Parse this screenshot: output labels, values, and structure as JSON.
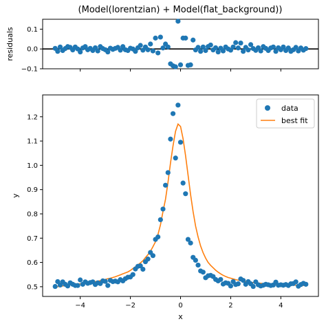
{
  "chart_data": [
    {
      "type": "scatter",
      "title": "(Model(lorentzian) + Model(flat_background))",
      "xlabel": "",
      "ylabel": "residuals",
      "xlim": [
        -5.5,
        5.5
      ],
      "ylim": [
        -0.1,
        0.15
      ],
      "xticks": [
        -4,
        -2,
        0,
        2,
        4
      ],
      "show_x_tick_labels": false,
      "yticks": [
        -0.1,
        0.0,
        0.1
      ],
      "ytick_labels": [
        "−0.1",
        "0.0",
        "0.1"
      ],
      "zero_line": true,
      "series": [
        {
          "color": "#1f77b4",
          "x": [
            -5.0,
            -4.9,
            -4.8,
            -4.7,
            -4.6,
            -4.5,
            -4.4,
            -4.3,
            -4.2,
            -4.1,
            -4.0,
            -3.9,
            -3.8,
            -3.7,
            -3.6,
            -3.5,
            -3.4,
            -3.3,
            -3.2,
            -3.1,
            -3.0,
            -2.9,
            -2.8,
            -2.7,
            -2.6,
            -2.5,
            -2.4,
            -2.3,
            -2.2,
            -2.1,
            -2.0,
            -1.9,
            -1.8,
            -1.7,
            -1.6,
            -1.5,
            -1.4,
            -1.3,
            -1.2,
            -1.1,
            -1.0,
            -0.9,
            -0.8,
            -0.7,
            -0.6,
            -0.5,
            -0.4,
            -0.3,
            -0.2,
            -0.1,
            0.0,
            0.1,
            0.2,
            0.3,
            0.4,
            0.5,
            0.6,
            0.7,
            0.8,
            0.9,
            1.0,
            1.1,
            1.2,
            1.3,
            1.4,
            1.5,
            1.6,
            1.7,
            1.8,
            1.9,
            2.0,
            2.1,
            2.2,
            2.3,
            2.4,
            2.5,
            2.6,
            2.7,
            2.8,
            2.9,
            3.0,
            3.1,
            3.2,
            3.3,
            3.4,
            3.5,
            3.6,
            3.7,
            3.8,
            3.9,
            4.0,
            4.1,
            4.2,
            4.3,
            4.4,
            4.5,
            4.6,
            4.7,
            4.8,
            4.9,
            5.0
          ],
          "y": [
            0.003,
            -0.012,
            0.01,
            -0.008,
            0.002,
            0.012,
            0.008,
            -0.005,
            0.01,
            0.0,
            -0.015,
            0.005,
            0.012,
            -0.004,
            0.003,
            -0.008,
            0.006,
            -0.01,
            0.012,
            0.002,
            -0.004,
            -0.015,
            0.004,
            -0.002,
            0.003,
            0.008,
            -0.006,
            0.012,
            -0.004,
            -0.008,
            0.004,
            0.0,
            -0.012,
            0.006,
            0.018,
            -0.006,
            0.01,
            -0.004,
            0.025,
            -0.01,
            0.055,
            -0.02,
            0.06,
            0.005,
            0.025,
            0.01,
            -0.075,
            -0.085,
            -0.09,
            0.14,
            -0.08,
            0.055,
            0.055,
            -0.083,
            -0.08,
            0.045,
            -0.005,
            0.008,
            -0.012,
            0.01,
            -0.008,
            0.012,
            0.02,
            -0.005,
            0.006,
            -0.015,
            0.004,
            -0.01,
            0.01,
            0.0,
            -0.006,
            0.01,
            0.032,
            0.005,
            0.03,
            -0.012,
            0.008,
            -0.005,
            0.022,
            0.002,
            -0.007,
            0.006,
            -0.01,
            0.012,
            0.003,
            -0.008,
            0.005,
            0.01,
            -0.012,
            0.006,
            -0.004,
            0.01,
            -0.008,
            0.005,
            -0.012,
            -0.004,
            0.008,
            -0.01,
            0.005,
            -0.006,
            0.002
          ]
        }
      ]
    },
    {
      "type": "scatter",
      "title": "",
      "xlabel": "x",
      "ylabel": "y",
      "xlim": [
        -5.5,
        5.5
      ],
      "ylim": [
        0.46,
        1.29
      ],
      "xticks": [
        -4,
        -2,
        0,
        2,
        4
      ],
      "xtick_labels": [
        "−4",
        "−2",
        "0",
        "2",
        "4"
      ],
      "yticks": [
        0.5,
        0.6,
        0.7,
        0.8,
        0.9,
        1.0,
        1.1,
        1.2
      ],
      "ytick_labels": [
        "0.5",
        "0.6",
        "0.7",
        "0.8",
        "0.9",
        "1.0",
        "1.1",
        "1.2"
      ],
      "legend_position": "top-right",
      "series": [
        {
          "name": "data",
          "kind": "markers",
          "color": "#1f77b4",
          "x": [
            -5.0,
            -4.9,
            -4.8,
            -4.7,
            -4.6,
            -4.5,
            -4.4,
            -4.3,
            -4.2,
            -4.1,
            -4.0,
            -3.9,
            -3.8,
            -3.7,
            -3.6,
            -3.5,
            -3.4,
            -3.3,
            -3.2,
            -3.1,
            -3.0,
            -2.9,
            -2.8,
            -2.7,
            -2.6,
            -2.5,
            -2.4,
            -2.3,
            -2.2,
            -2.1,
            -2.0,
            -1.9,
            -1.8,
            -1.7,
            -1.6,
            -1.5,
            -1.4,
            -1.3,
            -1.2,
            -1.1,
            -1.0,
            -0.9,
            -0.8,
            -0.7,
            -0.6,
            -0.5,
            -0.4,
            -0.3,
            -0.2,
            -0.1,
            0.0,
            0.1,
            0.2,
            0.3,
            0.4,
            0.5,
            0.6,
            0.7,
            0.8,
            0.9,
            1.0,
            1.1,
            1.2,
            1.3,
            1.4,
            1.5,
            1.6,
            1.7,
            1.8,
            1.9,
            2.0,
            2.1,
            2.2,
            2.3,
            2.4,
            2.5,
            2.6,
            2.7,
            2.8,
            2.9,
            3.0,
            3.1,
            3.2,
            3.3,
            3.4,
            3.5,
            3.6,
            3.7,
            3.8,
            3.9,
            4.0,
            4.1,
            4.2,
            4.3,
            4.4,
            4.5,
            4.6,
            4.7,
            4.8,
            4.9,
            5.0
          ],
          "y": [
            0.501,
            0.521,
            0.507,
            0.52,
            0.51,
            0.503,
            0.516,
            0.51,
            0.505,
            0.505,
            0.528,
            0.51,
            0.52,
            0.514,
            0.517,
            0.52,
            0.509,
            0.516,
            0.513,
            0.524,
            0.522,
            0.505,
            0.526,
            0.521,
            0.523,
            0.52,
            0.529,
            0.524,
            0.533,
            0.539,
            0.54,
            0.55,
            0.573,
            0.584,
            0.586,
            0.572,
            0.603,
            0.614,
            0.641,
            0.628,
            0.695,
            0.705,
            0.776,
            0.82,
            0.918,
            0.97,
            1.108,
            1.213,
            1.03,
            1.248,
            1.095,
            0.927,
            0.883,
            0.695,
            0.68,
            0.621,
            0.609,
            0.589,
            0.565,
            0.56,
            0.537,
            0.545,
            0.547,
            0.542,
            0.53,
            0.524,
            0.53,
            0.511,
            0.516,
            0.514,
            0.503,
            0.521,
            0.509,
            0.512,
            0.532,
            0.526,
            0.51,
            0.521,
            0.512,
            0.501,
            0.52,
            0.508,
            0.503,
            0.506,
            0.51,
            0.508,
            0.505,
            0.507,
            0.519,
            0.506,
            0.508,
            0.506,
            0.509,
            0.505,
            0.512,
            0.513,
            0.52,
            0.502,
            0.509,
            0.514,
            0.51
          ]
        },
        {
          "name": "best fit",
          "kind": "line",
          "color": "#ff7f0e",
          "x": [
            -5.0,
            -4.9,
            -4.8,
            -4.7,
            -4.6,
            -4.5,
            -4.4,
            -4.3,
            -4.2,
            -4.1,
            -4.0,
            -3.9,
            -3.8,
            -3.7,
            -3.6,
            -3.5,
            -3.4,
            -3.3,
            -3.2,
            -3.1,
            -3.0,
            -2.9,
            -2.8,
            -2.7,
            -2.6,
            -2.5,
            -2.4,
            -2.3,
            -2.2,
            -2.1,
            -2.0,
            -1.9,
            -1.8,
            -1.7,
            -1.6,
            -1.5,
            -1.4,
            -1.3,
            -1.2,
            -1.1,
            -1.0,
            -0.9,
            -0.8,
            -0.7,
            -0.6,
            -0.5,
            -0.4,
            -0.3,
            -0.2,
            -0.1,
            0.0,
            0.1,
            0.2,
            0.3,
            0.4,
            0.5,
            0.6,
            0.7,
            0.8,
            0.9,
            1.0,
            1.1,
            1.2,
            1.3,
            1.4,
            1.5,
            1.6,
            1.7,
            1.8,
            1.9,
            2.0,
            2.1,
            2.2,
            2.3,
            2.4,
            2.5,
            2.6,
            2.7,
            2.8,
            2.9,
            3.0,
            3.1,
            3.2,
            3.3,
            3.4,
            3.5,
            3.6,
            3.7,
            3.8,
            3.9,
            4.0,
            4.1,
            4.2,
            4.3,
            4.4,
            4.5,
            4.6,
            4.7,
            4.8,
            4.9,
            5.0
          ],
          "y": [
            0.498,
            0.5,
            0.502,
            0.503,
            0.505,
            0.507,
            0.508,
            0.509,
            0.51,
            0.511,
            0.512,
            0.513,
            0.515,
            0.516,
            0.518,
            0.519,
            0.521,
            0.523,
            0.525,
            0.527,
            0.53,
            0.533,
            0.535,
            0.538,
            0.541,
            0.545,
            0.549,
            0.553,
            0.557,
            0.561,
            0.567,
            0.575,
            0.582,
            0.59,
            0.598,
            0.607,
            0.62,
            0.632,
            0.646,
            0.665,
            0.685,
            0.715,
            0.755,
            0.81,
            0.86,
            0.93,
            1.01,
            1.08,
            1.14,
            1.17,
            1.16,
            1.11,
            1.04,
            0.96,
            0.88,
            0.81,
            0.75,
            0.705,
            0.668,
            0.64,
            0.618,
            0.6,
            0.588,
            0.578,
            0.568,
            0.56,
            0.553,
            0.547,
            0.542,
            0.538,
            0.535,
            0.532,
            0.529,
            0.527,
            0.525,
            0.523,
            0.521,
            0.52,
            0.518,
            0.517,
            0.516,
            0.515,
            0.514,
            0.513,
            0.512,
            0.512,
            0.511,
            0.51,
            0.51,
            0.509,
            0.509,
            0.508,
            0.508,
            0.507,
            0.507,
            0.507,
            0.506,
            0.506,
            0.506,
            0.505,
            0.505
          ]
        }
      ]
    }
  ]
}
